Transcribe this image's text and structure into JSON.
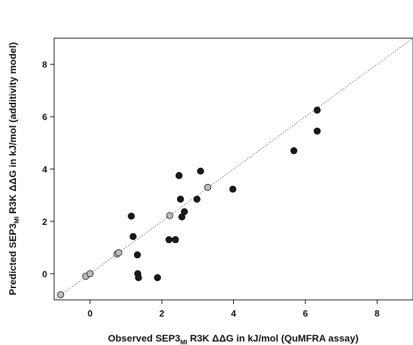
{
  "chart_data": {
    "type": "scatter",
    "xlabel_parts": [
      "Observed SEP3",
      "MI",
      " R3K ΔΔG in kJ/mol (QuMFRA assay)"
    ],
    "ylabel_parts": [
      "Predicted SEP3",
      "MI",
      " R3K ΔΔG in kJ/mol (additivity model)"
    ],
    "xlim": [
      -1,
      9
    ],
    "ylim": [
      -1,
      9
    ],
    "xticks": [
      0,
      2,
      4,
      6,
      8
    ],
    "yticks": [
      0,
      2,
      4,
      6,
      8
    ],
    "xtick_labels": [
      "0",
      "2",
      "4",
      "6",
      "8"
    ],
    "ytick_labels": [
      "0",
      "2",
      "4",
      "6",
      "8"
    ],
    "identity_line": true,
    "grid": false,
    "series": [
      {
        "color": "#1a1a1a",
        "points": [
          {
            "x": 1.15,
            "y": 2.2
          },
          {
            "x": 1.2,
            "y": 1.42
          },
          {
            "x": 1.32,
            "y": 0.72
          },
          {
            "x": 1.33,
            "y": 0.0
          },
          {
            "x": 1.35,
            "y": -0.15
          },
          {
            "x": 1.88,
            "y": -0.15
          },
          {
            "x": 2.2,
            "y": 1.3
          },
          {
            "x": 2.38,
            "y": 1.3
          },
          {
            "x": 2.48,
            "y": 3.75
          },
          {
            "x": 2.52,
            "y": 2.85
          },
          {
            "x": 2.56,
            "y": 2.17
          },
          {
            "x": 2.63,
            "y": 2.37
          },
          {
            "x": 2.98,
            "y": 2.85
          },
          {
            "x": 3.08,
            "y": 3.92
          },
          {
            "x": 3.98,
            "y": 3.23
          },
          {
            "x": 5.68,
            "y": 4.7
          },
          {
            "x": 6.33,
            "y": 6.25
          },
          {
            "x": 6.33,
            "y": 5.45
          }
        ]
      },
      {
        "color": "#bdbdbd",
        "points": [
          {
            "x": -0.82,
            "y": -0.8
          },
          {
            "x": -0.12,
            "y": -0.1
          },
          {
            "x": 0.0,
            "y": 0.0
          },
          {
            "x": 0.75,
            "y": 0.75
          },
          {
            "x": 0.8,
            "y": 0.8
          },
          {
            "x": 2.22,
            "y": 2.22
          },
          {
            "x": 3.28,
            "y": 3.3
          }
        ]
      }
    ]
  }
}
